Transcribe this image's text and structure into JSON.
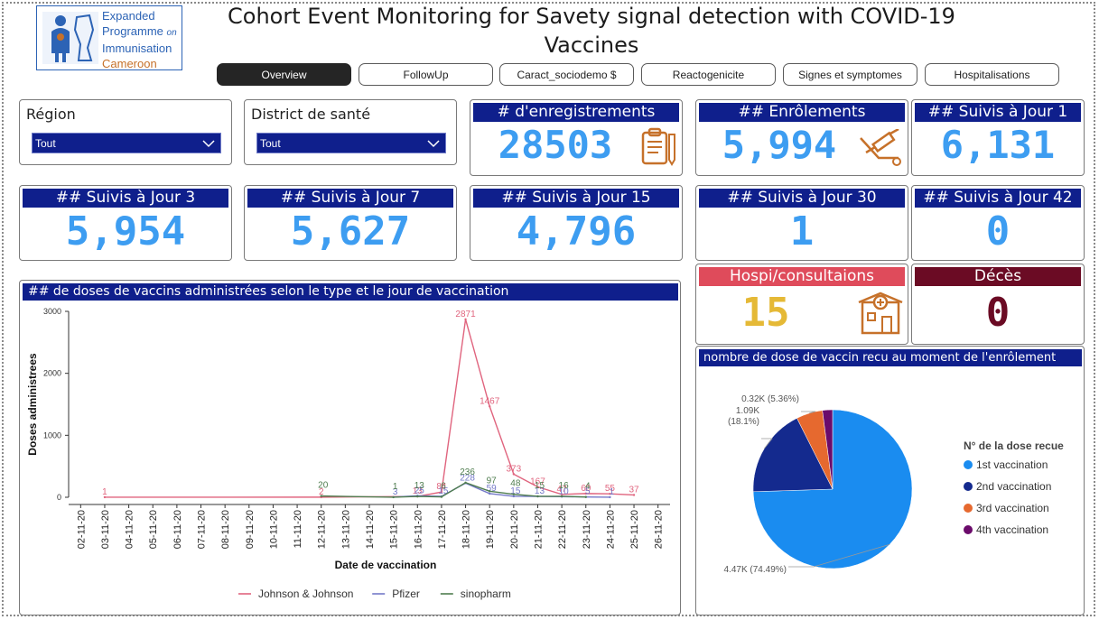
{
  "logo": {
    "line1": "Expanded",
    "line2": "Programme",
    "line2_on": "on",
    "line3": "Immunisation",
    "line4": "Cameroon"
  },
  "title": "Cohort Event Monitoring for Savety signal detection with COVID-19 Vaccines",
  "tabs": [
    "Overview",
    "FollowUp",
    "Caract_sociodemo $",
    "Reactogenicite",
    "Signes et symptomes",
    "Hospitalisations"
  ],
  "filters": {
    "region": {
      "label": "Région",
      "value": "Tout"
    },
    "district": {
      "label": "District de santé",
      "value": "Tout"
    }
  },
  "kpis": {
    "enregistrements": {
      "label": "# d'enregistrements",
      "value": "28503",
      "icon": "clipboard-icon"
    },
    "enrolements": {
      "label": "## Enrôlements",
      "value": "5,994",
      "icon": "syringe-icon"
    },
    "j1": {
      "label": "## Suivis à Jour 1",
      "value": "6,131"
    },
    "j3": {
      "label": "## Suivis à Jour 3",
      "value": "5,954"
    },
    "j7": {
      "label": "## Suivis à Jour 7",
      "value": "5,627"
    },
    "j15": {
      "label": "## Suivis à Jour 15",
      "value": "4,796"
    },
    "j30": {
      "label": "## Suivis à Jour 30",
      "value": "1"
    },
    "j42": {
      "label": "## Suivis à Jour 42",
      "value": "0"
    },
    "hospi": {
      "label": "Hospi/consultaions",
      "value": "15",
      "icon": "hospital-icon"
    },
    "deces": {
      "label": "Décès",
      "value": "0"
    }
  },
  "colors": {
    "navy": "#0f1f8c",
    "kpi_blue": "#3d9df1",
    "hospi_red": "#df4b5b",
    "hospi_value": "#e5b936",
    "deces_bg": "#6b0b24",
    "icon_orange": "#c6712a"
  },
  "line_chart": {
    "title": "## de doses de vaccins administrées selon le type et le jour de vaccination",
    "chart_data": {
      "type": "line",
      "xlabel": "Date de vaccination",
      "ylabel": "Doses administrees",
      "ylim": [
        0,
        3000
      ],
      "yticks": [
        "0",
        "1000",
        "2000",
        "3000"
      ],
      "categories": [
        "02-11-20",
        "03-11-20",
        "04-11-20",
        "05-11-20",
        "06-11-20",
        "07-11-20",
        "08-11-20",
        "09-11-20",
        "10-11-20",
        "11-11-20",
        "12-11-20",
        "13-11-20",
        "14-11-20",
        "15-11-20",
        "16-11-20",
        "17-11-20",
        "18-11-20",
        "19-11-20",
        "20-11-20",
        "21-11-20",
        "22-11-20",
        "23-11-20",
        "24-11-20",
        "25-11-20",
        "26-11-20"
      ],
      "series": [
        {
          "name": "Johnson & Johnson",
          "color": "#e0647e",
          "points": [
            [
              1,
              1
            ],
            [
              10,
              2
            ],
            [
              14,
              13
            ],
            [
              15,
              84
            ],
            [
              16,
              2871
            ],
            [
              17,
              1467
            ],
            [
              18,
              373
            ],
            [
              19,
              167
            ],
            [
              20,
              47
            ],
            [
              21,
              60
            ],
            [
              22,
              55
            ],
            [
              23,
              37
            ]
          ],
          "labels": [
            "1",
            "2",
            "13",
            "84",
            "2871",
            "1467",
            "373",
            "167",
            "47",
            "60",
            "55",
            "37"
          ]
        },
        {
          "name": "Pfizer",
          "color": "#7479c8",
          "points": [
            [
              13,
              3
            ],
            [
              14,
              25
            ],
            [
              15,
              15
            ],
            [
              16,
              228
            ],
            [
              17,
              59
            ],
            [
              18,
              15
            ],
            [
              19,
              13
            ],
            [
              20,
              10
            ],
            [
              21,
              5
            ],
            [
              22,
              1
            ]
          ],
          "labels": [
            "3",
            "25",
            "15",
            "228",
            "59",
            "15",
            "13",
            "10",
            "5",
            "1"
          ]
        },
        {
          "name": "sinopharm",
          "color": "#4f7d4f",
          "points": [
            [
              10,
              20
            ],
            [
              13,
              1
            ],
            [
              14,
              13
            ],
            [
              15,
              6
            ],
            [
              16,
              236
            ],
            [
              17,
              97
            ],
            [
              18,
              48
            ],
            [
              19,
              15
            ],
            [
              20,
              16
            ],
            [
              21,
              4
            ]
          ],
          "labels": [
            "20",
            "1",
            "13",
            "6",
            "236",
            "97",
            "48",
            "15",
            "16",
            "4"
          ]
        }
      ]
    }
  },
  "pie_chart": {
    "title": "nombre de dose de vaccin recu au moment de l'enrôlement",
    "legend_title": "N° de la dose recue",
    "chart_data": {
      "type": "pie",
      "slices": [
        {
          "name": "1st vaccination",
          "value": 4.47,
          "percent": 74.49,
          "label": "4.47K (74.49%)",
          "color": "#1a8cf0"
        },
        {
          "name": "2nd vaccination",
          "value": 1.09,
          "percent": 18.1,
          "label": "1.09K (18.1%)",
          "color": "#142a8e"
        },
        {
          "name": "3rd vaccination",
          "value": 0.32,
          "percent": 5.36,
          "label": "0.32K (5.36%)",
          "color": "#e6692f"
        },
        {
          "name": "4th vaccination",
          "value": 0.12,
          "percent": 2.05,
          "label": "",
          "color": "#6b0b6b"
        }
      ]
    }
  }
}
